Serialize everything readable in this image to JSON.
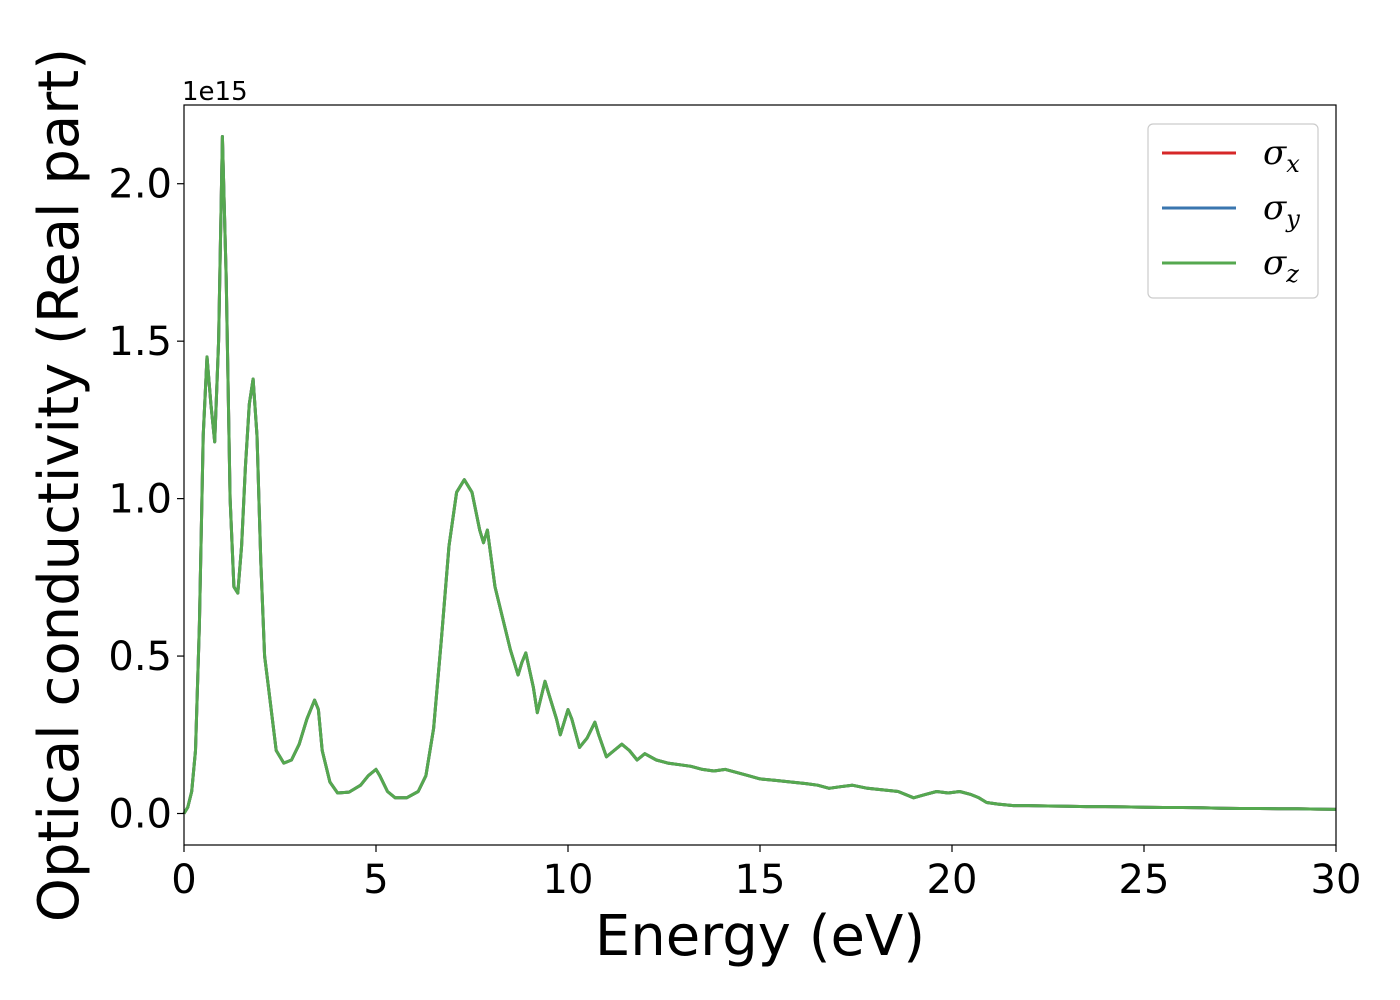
{
  "chart_data": {
    "type": "line",
    "xlabel": "Energy (eV)",
    "ylabel": "Optical conductivity (Real part)",
    "y_offset_label": "1e15",
    "xlim": [
      0,
      30
    ],
    "ylim": [
      -0.1,
      2.25
    ],
    "x_ticks": [
      0,
      5,
      10,
      15,
      20,
      25,
      30
    ],
    "x_tick_labels": [
      "0",
      "5",
      "10",
      "15",
      "20",
      "25",
      "30"
    ],
    "y_ticks": [
      0.0,
      0.5,
      1.0,
      1.5,
      2.0
    ],
    "y_tick_labels": [
      "0.0",
      "0.5",
      "1.0",
      "1.5",
      "2.0"
    ],
    "grid": false,
    "legend": "top-right",
    "series": [
      {
        "name": "σ",
        "subscript": "x",
        "color": "#d62728"
      },
      {
        "name": "σ",
        "subscript": "y",
        "color": "#3a76af"
      },
      {
        "name": "σ",
        "subscript": "z",
        "color": "#55a84f"
      }
    ],
    "x": [
      0.0,
      0.1,
      0.2,
      0.3,
      0.4,
      0.5,
      0.6,
      0.7,
      0.8,
      0.9,
      1.0,
      1.1,
      1.2,
      1.3,
      1.4,
      1.5,
      1.6,
      1.7,
      1.8,
      1.9,
      2.0,
      2.1,
      2.2,
      2.4,
      2.6,
      2.8,
      3.0,
      3.2,
      3.4,
      3.5,
      3.6,
      3.8,
      4.0,
      4.3,
      4.6,
      4.8,
      5.0,
      5.1,
      5.3,
      5.5,
      5.8,
      6.1,
      6.3,
      6.5,
      6.7,
      6.9,
      7.1,
      7.3,
      7.5,
      7.7,
      7.8,
      7.9,
      8.1,
      8.3,
      8.5,
      8.7,
      8.8,
      8.9,
      9.1,
      9.2,
      9.4,
      9.5,
      9.7,
      9.8,
      10.0,
      10.1,
      10.3,
      10.5,
      10.7,
      10.8,
      11.0,
      11.2,
      11.4,
      11.6,
      11.8,
      12.0,
      12.3,
      12.6,
      12.9,
      13.2,
      13.5,
      13.8,
      14.1,
      14.4,
      14.7,
      15.0,
      15.4,
      15.8,
      16.2,
      16.5,
      16.8,
      17.1,
      17.4,
      17.8,
      18.2,
      18.6,
      19.0,
      19.3,
      19.6,
      19.9,
      20.2,
      20.5,
      20.7,
      20.9,
      21.2,
      21.6,
      22.0,
      22.5,
      23.0,
      23.5,
      24.0,
      24.5,
      25.0,
      25.5,
      26.0,
      26.5,
      27.0,
      27.5,
      28.0,
      28.5,
      29.0,
      29.5,
      30.0
    ],
    "values": [
      0.0,
      0.02,
      0.07,
      0.2,
      0.6,
      1.2,
      1.45,
      1.3,
      1.18,
      1.5,
      2.15,
      1.7,
      1.0,
      0.72,
      0.7,
      0.85,
      1.1,
      1.3,
      1.38,
      1.2,
      0.8,
      0.5,
      0.4,
      0.2,
      0.16,
      0.17,
      0.22,
      0.3,
      0.36,
      0.33,
      0.2,
      0.1,
      0.065,
      0.068,
      0.09,
      0.12,
      0.14,
      0.12,
      0.07,
      0.05,
      0.05,
      0.07,
      0.12,
      0.27,
      0.55,
      0.85,
      1.02,
      1.06,
      1.02,
      0.9,
      0.86,
      0.9,
      0.72,
      0.62,
      0.52,
      0.44,
      0.48,
      0.51,
      0.4,
      0.32,
      0.42,
      0.38,
      0.3,
      0.25,
      0.33,
      0.3,
      0.21,
      0.24,
      0.29,
      0.25,
      0.18,
      0.2,
      0.22,
      0.2,
      0.17,
      0.19,
      0.17,
      0.16,
      0.155,
      0.15,
      0.14,
      0.135,
      0.14,
      0.13,
      0.12,
      0.11,
      0.105,
      0.1,
      0.095,
      0.09,
      0.08,
      0.085,
      0.09,
      0.08,
      0.075,
      0.07,
      0.05,
      0.06,
      0.07,
      0.065,
      0.07,
      0.06,
      0.05,
      0.035,
      0.03,
      0.025,
      0.025,
      0.024,
      0.023,
      0.022,
      0.022,
      0.021,
      0.02,
      0.019,
      0.019,
      0.018,
      0.017,
      0.016,
      0.016,
      0.015,
      0.015,
      0.014,
      0.013
    ]
  }
}
